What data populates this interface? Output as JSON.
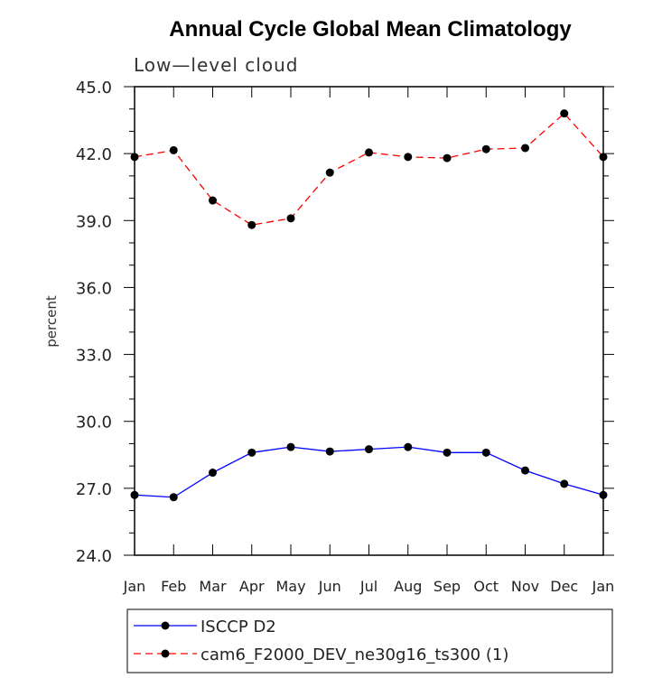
{
  "chart_data": {
    "type": "line",
    "title": "Annual Cycle Global Mean Climatology",
    "subtitle": "Low—level cloud",
    "xlabel": "",
    "ylabel": "percent",
    "categories": [
      "Jan",
      "Feb",
      "Mar",
      "Apr",
      "May",
      "Jun",
      "Jul",
      "Aug",
      "Sep",
      "Oct",
      "Nov",
      "Dec",
      "Jan"
    ],
    "ylim": [
      24.0,
      45.0
    ],
    "yticks": [
      24.0,
      27.0,
      30.0,
      33.0,
      36.0,
      39.0,
      42.0,
      45.0
    ],
    "ytick_labels": [
      "24.0",
      "27.0",
      "30.0",
      "33.0",
      "36.0",
      "39.0",
      "42.0",
      "45.0"
    ],
    "grid": false,
    "legend_position": "bottom",
    "series": [
      {
        "name": "ISCCP D2",
        "color": "#0000ff",
        "dash": "solid",
        "values": [
          26.7,
          26.6,
          27.7,
          28.6,
          28.85,
          28.65,
          28.75,
          28.85,
          28.6,
          28.6,
          27.8,
          27.2,
          26.7
        ]
      },
      {
        "name": "cam6_F2000_DEV_ne30g16_ts300 (1)",
        "color": "#ff0000",
        "dash": "dashed",
        "values": [
          41.85,
          42.15,
          39.9,
          38.8,
          39.1,
          41.15,
          42.05,
          41.85,
          41.8,
          42.2,
          42.25,
          43.8,
          41.85
        ]
      }
    ]
  }
}
